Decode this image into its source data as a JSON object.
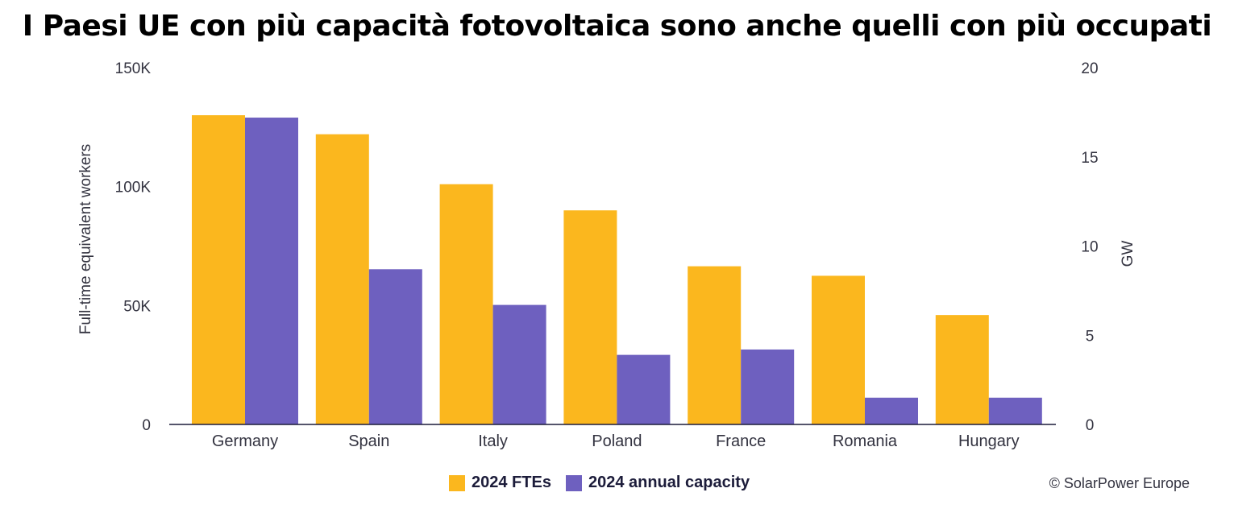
{
  "title": "I Paesi UE con più capacità fotovoltaica sono anche quelli con più occupati",
  "credit": "© SolarPower Europe",
  "colors": {
    "fte": "#FBB71E",
    "capacity": "#6E60BF",
    "axis": "#1c1c3a"
  },
  "chart_data": {
    "type": "bar",
    "categories": [
      "Germany",
      "Spain",
      "Italy",
      "Poland",
      "France",
      "Romania",
      "Hungary"
    ],
    "series": [
      {
        "name": "2024 FTEs",
        "axis": "left",
        "values": [
          130000,
          122000,
          101000,
          90000,
          66500,
          62500,
          46000
        ]
      },
      {
        "name": "2024 annual capacity",
        "axis": "right",
        "values": [
          17.2,
          8.7,
          6.7,
          3.9,
          4.2,
          1.5,
          1.5
        ]
      }
    ],
    "left_axis": {
      "label": "Full-time equivalent workers",
      "range": [
        0,
        150000
      ],
      "ticks": [
        0,
        50000,
        100000,
        150000
      ],
      "tick_labels": [
        "0",
        "50K",
        "100K",
        "150K"
      ]
    },
    "right_axis": {
      "label": "GW",
      "range": [
        0,
        20
      ],
      "ticks": [
        0,
        5,
        10,
        15,
        20
      ],
      "tick_labels": [
        "0",
        "5",
        "10",
        "15",
        "20"
      ]
    },
    "legend": [
      "2024 FTEs",
      "2024 annual capacity"
    ],
    "legend_position": "bottom-center",
    "grid": false
  }
}
